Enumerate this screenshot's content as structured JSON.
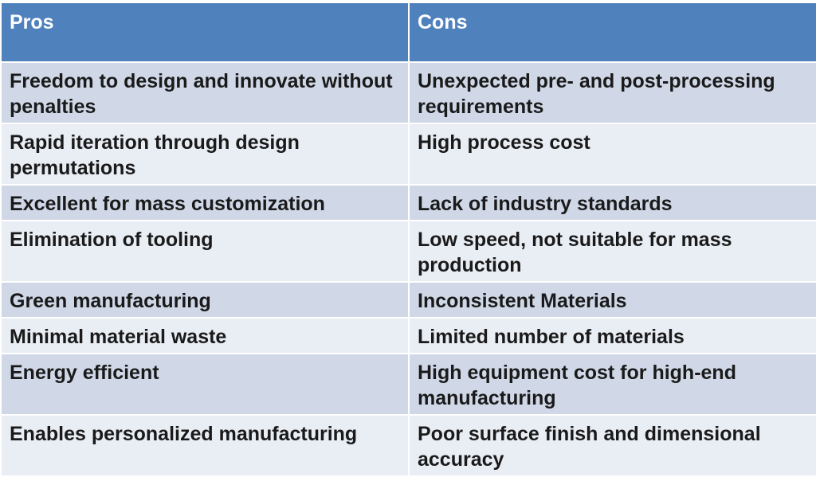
{
  "table": {
    "header": {
      "pros": "Pros",
      "cons": "Cons"
    },
    "rows": [
      {
        "pros": "Freedom to design and innovate without penalties",
        "cons": "Unexpected pre- and post-processing requirements"
      },
      {
        "pros": "Rapid iteration through design permutations",
        "cons": "High process cost"
      },
      {
        "pros": "Excellent for mass customization",
        "cons": "Lack of industry standards"
      },
      {
        "pros": "Elimination of tooling",
        "cons": "Low speed, not suitable for mass production"
      },
      {
        "pros": "Green manufacturing",
        "cons": "Inconsistent Materials"
      },
      {
        "pros": "Minimal material waste",
        "cons": "Limited number of materials"
      },
      {
        "pros": "Energy efficient",
        "cons": "High equipment cost for high-end manufacturing"
      },
      {
        "pros": "Enables personalized manufacturing",
        "cons": "Poor surface finish and dimensional accuracy"
      }
    ]
  },
  "colors": {
    "header_bg": "#4f81bd",
    "row_dark_bg": "#d0d8e8",
    "row_light_bg": "#e9edf4",
    "text": "#1a1a1a"
  }
}
